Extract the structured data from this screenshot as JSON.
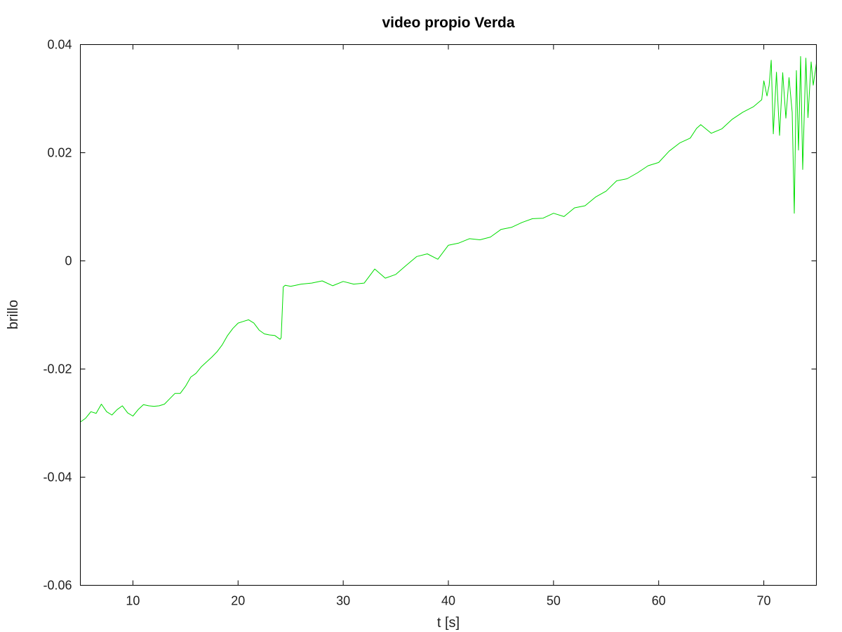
{
  "chart_data": {
    "type": "line",
    "title": "video propio Verda",
    "xlabel": "t [s]",
    "ylabel": "brillo",
    "xlim": [
      5,
      75
    ],
    "ylim": [
      -0.06,
      0.04
    ],
    "xticks": [
      10,
      20,
      30,
      40,
      50,
      60,
      70
    ],
    "xtick_labels": [
      "10",
      "20",
      "30",
      "40",
      "50",
      "60",
      "70"
    ],
    "yticks": [
      -0.06,
      -0.04,
      -0.02,
      0,
      0.02,
      0.04
    ],
    "ytick_labels": [
      "-0.06",
      "-0.04",
      "-0.02",
      "0",
      "0.02",
      "0.04"
    ],
    "grid": false,
    "legend": "none",
    "series": [
      {
        "color": "#00dd00",
        "x": [
          5,
          5.5,
          6,
          6.5,
          7,
          7.5,
          8,
          8.5,
          9,
          9.5,
          10,
          10.5,
          11,
          11.5,
          12,
          12.5,
          13,
          13.5,
          14,
          14.5,
          15,
          15.5,
          16,
          16.5,
          17,
          17.5,
          18,
          18.5,
          19,
          19.5,
          20,
          20.5,
          21,
          21.5,
          22,
          22.5,
          23,
          23.5,
          24,
          24.1,
          24.3,
          24.5,
          25,
          26,
          27,
          28,
          29,
          30,
          31,
          32,
          33,
          34,
          35,
          36,
          37,
          38,
          39,
          40,
          41,
          42,
          43,
          44,
          45,
          46,
          47,
          48,
          49,
          50,
          51,
          52,
          53,
          54,
          55,
          56,
          57,
          58,
          59,
          60,
          61,
          62,
          63,
          63.6,
          64,
          65,
          66,
          67,
          68,
          69,
          69.8,
          70,
          70.3,
          70.5,
          70.7,
          70.9,
          71.2,
          71.5,
          71.8,
          72.1,
          72.4,
          72.7,
          72.9,
          73.1,
          73.3,
          73.5,
          73.7,
          74,
          74.2,
          74.5,
          74.7,
          75
        ],
        "y": [
          -0.0298,
          -0.0291,
          -0.0279,
          -0.0282,
          -0.0265,
          -0.0279,
          -0.0285,
          -0.0275,
          -0.0268,
          -0.0281,
          -0.0287,
          -0.0275,
          -0.0266,
          -0.0268,
          -0.0269,
          -0.0268,
          -0.0265,
          -0.0255,
          -0.0245,
          -0.0245,
          -0.0232,
          -0.0215,
          -0.0208,
          -0.0196,
          -0.0187,
          -0.0178,
          -0.0168,
          -0.0155,
          -0.0138,
          -0.0125,
          -0.0115,
          -0.0112,
          -0.0109,
          -0.0115,
          -0.0128,
          -0.0135,
          -0.0137,
          -0.0138,
          -0.0145,
          -0.0142,
          -0.0048,
          -0.0045,
          -0.0047,
          -0.0043,
          -0.0041,
          -0.0037,
          -0.0046,
          -0.0038,
          -0.0043,
          -0.0041,
          -0.0015,
          -0.0032,
          -0.0025,
          -0.0008,
          0.0008,
          0.0013,
          0.0003,
          0.0029,
          0.0033,
          0.0041,
          0.0039,
          0.0044,
          0.0058,
          0.0062,
          0.0071,
          0.0078,
          0.0079,
          0.0088,
          0.0082,
          0.0098,
          0.0102,
          0.0118,
          0.0129,
          0.0148,
          0.0152,
          0.0163,
          0.0176,
          0.0182,
          0.0203,
          0.0218,
          0.0227,
          0.0245,
          0.0252,
          0.0236,
          0.0244,
          0.0262,
          0.0275,
          0.0285,
          0.0298,
          0.0333,
          0.0305,
          0.0324,
          0.0371,
          0.0235,
          0.0349,
          0.0232,
          0.0348,
          0.0264,
          0.0339,
          0.0275,
          0.0088,
          0.0352,
          0.0205,
          0.0378,
          0.0169,
          0.0375,
          0.0265,
          0.0368,
          0.0325,
          0.0365
        ]
      }
    ]
  }
}
